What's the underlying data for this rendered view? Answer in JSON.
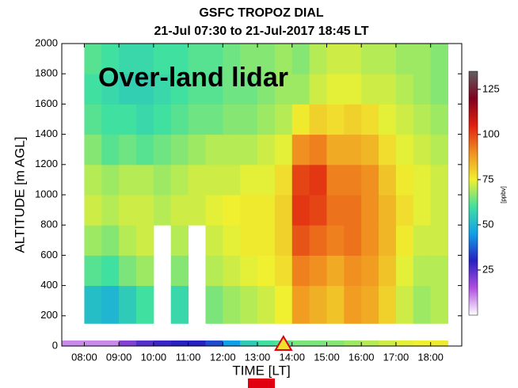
{
  "chart_data": {
    "type": "heatmap",
    "title": "GSFC TROPOZ DIAL",
    "subtitle": "21-Jul 07:30 to 21-Jul-2017 18:45 LT",
    "annotation": "Over-land lidar",
    "xlabel": "TIME [LT]",
    "ylabel": "ALTITUDE [m AGL]",
    "colorbar_label": "[ppbv]",
    "xlim": [
      7.35,
      18.9
    ],
    "xticks": [
      {
        "value": 8,
        "label": "08:00"
      },
      {
        "value": 9,
        "label": "09:00"
      },
      {
        "value": 10,
        "label": "10:00"
      },
      {
        "value": 11,
        "label": "11:00"
      },
      {
        "value": 12,
        "label": "12:00"
      },
      {
        "value": 13,
        "label": "13:00"
      },
      {
        "value": 14,
        "label": "14:00"
      },
      {
        "value": 15,
        "label": "15:00"
      },
      {
        "value": 16,
        "label": "16:00"
      },
      {
        "value": 17,
        "label": "17:00"
      },
      {
        "value": 18,
        "label": "18:00"
      }
    ],
    "ylim": [
      0,
      2000
    ],
    "yticks": [
      0,
      200,
      400,
      600,
      800,
      1000,
      1200,
      1400,
      1600,
      1800,
      2000
    ],
    "clim": [
      0,
      135
    ],
    "cticks": [
      25,
      50,
      75,
      100,
      125
    ],
    "colormap": [
      "#ffffff",
      "#b050e0",
      "#2820c0",
      "#10a0e8",
      "#40e0a0",
      "#f0f030",
      "#f09020",
      "#e02010",
      "#800020",
      "#606060"
    ],
    "x_edges": [
      8.0,
      8.5,
      9.0,
      9.5,
      10.0,
      10.5,
      11.0,
      11.5,
      12.0,
      12.5,
      13.0,
      13.5,
      14.0,
      14.5,
      15.0,
      15.5,
      16.0,
      16.5,
      17.0,
      17.5,
      18.0,
      18.5
    ],
    "y_edges": [
      150,
      400,
      600,
      800,
      1000,
      1200,
      1400,
      1600,
      1800,
      2000
    ],
    "z": [
      [
        52,
        50,
        55,
        60,
        null,
        58,
        null,
        65,
        68,
        70,
        72,
        75,
        88,
        85,
        82,
        88,
        86,
        80,
        72,
        68,
        70
      ],
      [
        62,
        60,
        65,
        68,
        null,
        66,
        null,
        70,
        72,
        74,
        75,
        78,
        92,
        90,
        86,
        90,
        88,
        82,
        74,
        70,
        70
      ],
      [
        68,
        66,
        70,
        72,
        null,
        70,
        null,
        72,
        74,
        76,
        76,
        80,
        98,
        95,
        92,
        94,
        90,
        84,
        76,
        72,
        72
      ],
      [
        72,
        70,
        72,
        72,
        70,
        72,
        72,
        74,
        75,
        76,
        76,
        80,
        102,
        100,
        94,
        94,
        90,
        84,
        78,
        74,
        72
      ],
      [
        70,
        68,
        70,
        70,
        68,
        70,
        72,
        72,
        72,
        74,
        74,
        78,
        100,
        102,
        92,
        92,
        90,
        82,
        76,
        74,
        72
      ],
      [
        66,
        62,
        64,
        62,
        64,
        66,
        68,
        70,
        70,
        70,
        72,
        74,
        90,
        92,
        86,
        86,
        84,
        78,
        74,
        72,
        70
      ],
      [
        62,
        60,
        60,
        58,
        60,
        62,
        64,
        64,
        66,
        66,
        68,
        70,
        76,
        80,
        78,
        80,
        78,
        74,
        72,
        70,
        68
      ],
      [
        60,
        58,
        56,
        56,
        58,
        60,
        62,
        62,
        64,
        64,
        66,
        68,
        68,
        72,
        74,
        74,
        72,
        72,
        70,
        68,
        66
      ],
      [
        62,
        60,
        58,
        58,
        60,
        60,
        62,
        62,
        64,
        66,
        66,
        68,
        66,
        70,
        72,
        72,
        70,
        70,
        68,
        68,
        66
      ]
    ],
    "surface_values": [
      10,
      10,
      20,
      25,
      28,
      30,
      30,
      35,
      45,
      55,
      60,
      62,
      65,
      65,
      66,
      68,
      70,
      72,
      74,
      75,
      76
    ]
  }
}
